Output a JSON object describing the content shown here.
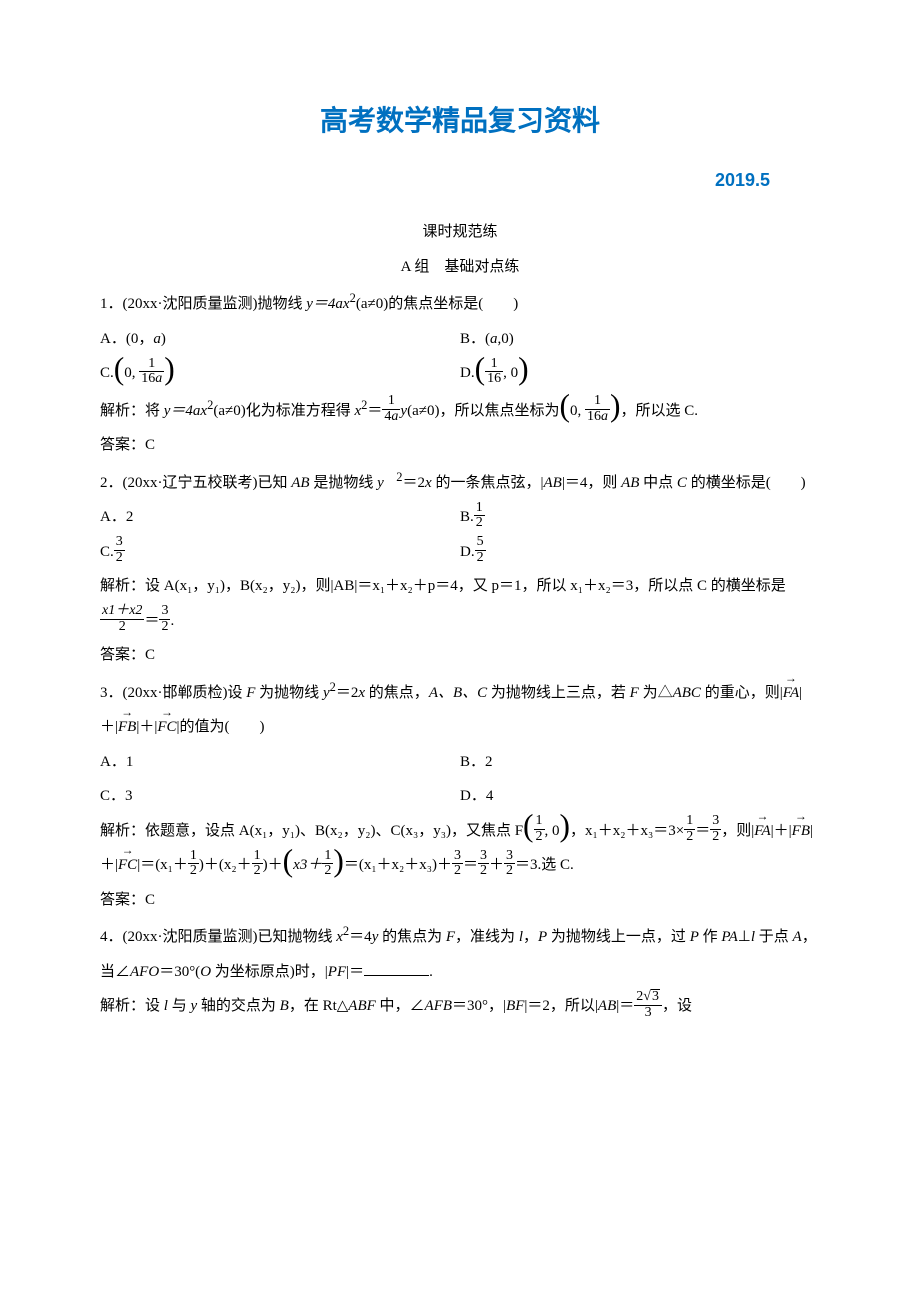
{
  "header": {
    "title": "高考数学精品复习资料",
    "date": "2019.5"
  },
  "section": {
    "lesson": "课时规范练",
    "group": "A 组　基础对点练"
  },
  "q1": {
    "stem_pre": "1．(20xx·沈阳质量监测)抛物线 ",
    "eq1": "y＝4ax",
    "eq1_sup": "2",
    "eq1_post": "(a≠0)的焦点坐标是(　　)",
    "A_pre": "A．(0，",
    "A_var": "a",
    "A_post": ")",
    "B_pre": "B．(",
    "B_var": "a",
    "B_post": ",0)",
    "C_label": "C.",
    "C_inner_pre": "0, ",
    "C_num": "1",
    "C_den_pre": "16",
    "C_den_var": "a",
    "D_label": "D.",
    "D_num": "1",
    "D_den": "16",
    "D_post": ", 0",
    "sol_pre": "解析：将 ",
    "sol_eq1": "y＝4ax",
    "sol_sup": "2",
    "sol_eq1_post": "(a≠0)化为标准方程得 ",
    "sol_x2": "x",
    "sol_x2_sup": "2",
    "sol_eq2": "＝",
    "sol_frac_num": "1",
    "sol_frac_den_pre": "4",
    "sol_frac_den_var": "a",
    "sol_y": "y",
    "sol_post1": "(a≠0)，所以焦点坐标为",
    "sol_inner_pre": "0, ",
    "sol_fnum": "1",
    "sol_fden_pre": "16",
    "sol_fden_var": "a",
    "sol_post2": "，所以选 C.",
    "ans": "答案：C"
  },
  "q2": {
    "stem_pre": "2．(20xx·辽宁五校联考)已知 ",
    "AB": "AB",
    "stem_mid": " 是抛物线 ",
    "y": "y",
    "sup": "　2",
    "eq": "＝2",
    "x": "x",
    "stem_mid2": " 的一条焦点弦，|",
    "AB2": "AB",
    "stem_mid3": "|＝4，则 ",
    "AB3": "AB",
    "stem_mid4": " 中点 ",
    "C": "C",
    "stem_post": " 的横坐标是(　　)",
    "A": "A．2",
    "B_label": "B.",
    "B_num": "1",
    "B_den": "2",
    "Cc_label": "C.",
    "C_num": "3",
    "C_den": "2",
    "D_label": "D.",
    "D_num": "5",
    "D_den": "2",
    "sol": "解析：设 A(x₁，y₁)，B(x₂，y₂)，则|AB|＝x₁＋x₂＋p＝4，又 p＝1，所以 x₁＋x₂＝3，所以点 C 的横坐标是 ",
    "sol_fnum": "x1＋x2",
    "sol_fden": "2",
    "sol_eq": "＝",
    "sol_f2num": "3",
    "sol_f2den": "2",
    "sol_post": ".",
    "ans": "答案：C"
  },
  "q3": {
    "stem_pre": "3．(20xx·邯郸质检)设 ",
    "F": "F",
    "stem_mid1": " 为抛物线 ",
    "y": "y",
    "sup": "2",
    "eq": "＝2",
    "x": "x",
    "stem_mid2": " 的焦点，",
    "ABC_list": "A、B、C",
    "stem_mid3": " 为抛物线上三点，若 ",
    "F2": "F",
    "stem_mid4": " 为△",
    "ABC": "ABC",
    "stem_mid5": " 的重心，则|",
    "FA": "FA",
    "plus1": "|＋|",
    "FB": "FB",
    "plus2": "|＋|",
    "FC": "FC",
    "stem_post": "|的值为(　　)",
    "A": "A．1",
    "B": "B．2",
    "C": "C．3",
    "D": "D．4",
    "sol_pre": "解析：依题意，设点 A(x₁，y₁)、B(x₂，y₂)、C(x₃，y₃)，又焦点 F",
    "F_num": "1",
    "F_den": "2",
    "F_post": ", 0",
    "sol_mid1": "，x₁＋x₂＋x₃＝3×",
    "t_num": "1",
    "t_den": "2",
    "sol_eq1": "＝",
    "t2_num": "3",
    "t2_den": "2",
    "sol_mid2": "，则|",
    "sFA": "FA",
    "s_plus1": "|＋|",
    "sFB": "FB",
    "s_plus2": "|＋|",
    "sFC": "FC",
    "s_mid3": "|＝(x₁＋",
    "h1_num": "1",
    "h1_den": "2",
    "s_p1": ")＋(x₂＋",
    "h2_num": "1",
    "h2_den": "2",
    "s_p2": ")＋",
    "sx3": "x3＋",
    "h3_num": "1",
    "h3_den": "2",
    "s_mid4": "＝(x₁＋x₂＋x₃)＋",
    "r1_num": "3",
    "r1_den": "2",
    "s_eq": "＝",
    "r2_num": "3",
    "r2_den": "2",
    "s_plus": "＋",
    "r3_num": "3",
    "r3_den": "2",
    "s_post": "＝3.选 C.",
    "ans": "答案：C"
  },
  "q4": {
    "stem_pre": "4．(20xx·沈阳质量监测)已知抛物线 ",
    "x": "x",
    "sup": "2",
    "eq": "＝4",
    "y": "y",
    "stem_mid1": " 的焦点为 ",
    "F": "F",
    "stem_mid2": "，准线为 ",
    "l": "l",
    "stem_mid3": "，",
    "P": "P",
    "stem_mid4": " 为抛物线上一点，过 ",
    "P2": "P",
    "stem_mid5": " 作 ",
    "PA": "PA",
    "perp": "⊥",
    "l2": "l",
    "stem_mid6": " 于点 ",
    "A": "A",
    "stem_mid7": "，当∠",
    "AFO": "AFO",
    "stem_mid8": "＝30°(",
    "O": "O",
    "stem_mid9": " 为坐标原点)时，|",
    "PF": "PF",
    "stem_post": "|＝",
    "dot": ".",
    "sol_pre": "解析：设 ",
    "sl": "l",
    "sol_mid1": " 与 ",
    "sy": "y",
    "sol_mid2": " 轴的交点为 ",
    "sB": "B",
    "sol_mid3": "，在 Rt△",
    "sABF": "ABF",
    "sol_mid4": " 中，∠",
    "sAFB": "AFB",
    "sol_mid5": "＝30°，|",
    "sBF": "BF",
    "sol_mid6": "|＝2，所以|",
    "sAB": "AB",
    "sol_mid7": "|＝",
    "sq_num": "2",
    "sq_rad": "3",
    "sq_den": "3",
    "sol_post": "，设"
  }
}
